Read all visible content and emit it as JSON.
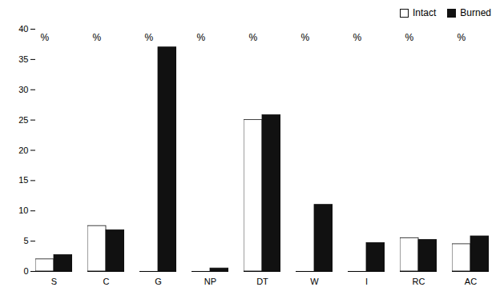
{
  "chart_data": {
    "type": "bar",
    "categories": [
      "S",
      "C",
      "G",
      "NP",
      "DT",
      "W",
      "I",
      "RC",
      "AC"
    ],
    "series": [
      {
        "name": "Intact",
        "color": "#ffffff",
        "values": [
          2.0,
          7.5,
          0.0,
          0.0,
          25.0,
          0.0,
          0.0,
          5.5,
          4.5
        ]
      },
      {
        "name": "Burned",
        "color": "#111111",
        "values": [
          2.7,
          6.8,
          37.0,
          0.5,
          25.8,
          11.0,
          4.7,
          5.2,
          5.8
        ]
      }
    ],
    "ylabel": "%",
    "ylim": [
      0,
      40
    ],
    "yticks": [
      0,
      5,
      10,
      15,
      20,
      25,
      30,
      35,
      40
    ],
    "legend": "upper right",
    "grid": false
  }
}
